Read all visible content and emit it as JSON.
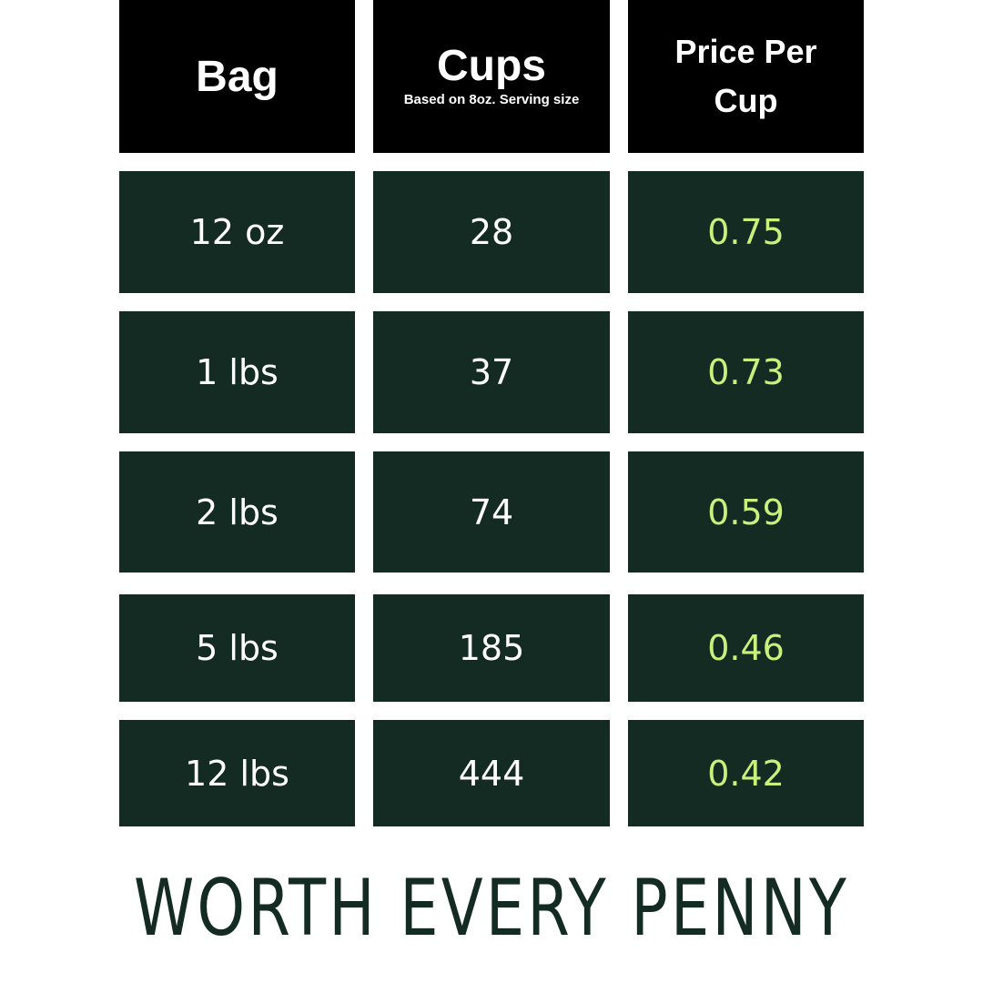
{
  "headers": {
    "bag": "Bag",
    "cups": "Cups",
    "cups_note": "Based on 8oz. Serving size",
    "price": "Price Per Cup"
  },
  "rows": [
    {
      "bag": "12 oz",
      "cups": "28",
      "price": "0.75"
    },
    {
      "bag": "1 lbs",
      "cups": "37",
      "price": "0.73"
    },
    {
      "bag": "2 lbs",
      "cups": "74",
      "price": "0.59"
    },
    {
      "bag": "5 lbs",
      "cups": "185",
      "price": "0.46"
    },
    {
      "bag": "12 lbs",
      "cups": "444",
      "price": "0.42"
    }
  ],
  "tagline": "WORTH EVERY PENNY",
  "colors": {
    "header_bg": "#000000",
    "row_bg": "#142b23",
    "price_text": "#c6f27c",
    "tagline": "#142b23"
  }
}
